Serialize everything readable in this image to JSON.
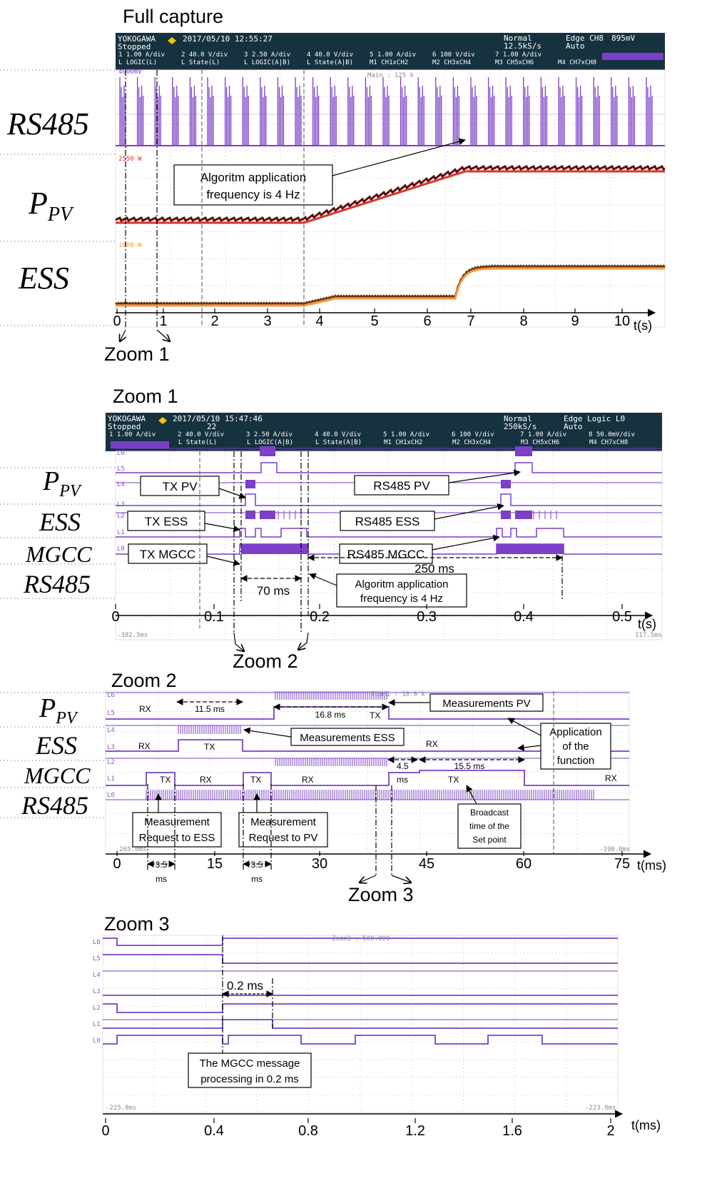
{
  "sections": {
    "full": {
      "title": "Full capture",
      "scope": {
        "brand": "YOKOGAWA",
        "datetime": "2017/05/10 12:55:27",
        "status": "Stopped",
        "mode": "Normal",
        "rate": "12.5kS/s",
        "trigger": "Edge CH8",
        "trigger_level": "895mV",
        "trigger_mode": "Auto",
        "main": "Main : 125 k",
        "scale_top": "4000mV",
        "scale_ppv": "2550 W",
        "scale_ess": "1600 W"
      },
      "channels_row1": [
        "1  1.00 A/div",
        "2  40.0 V/div",
        "3  2.50 A/div",
        "4  40.0 V/div",
        "5  1.00 A/div",
        "6  100 V/div",
        "7  1.00 A/div"
      ],
      "channels_row2": [
        "L  LOGIC(L)",
        "L  State(L)",
        "L  LOGIC(A|B)",
        "L  State(A|B)",
        "M1 CH1xCH2",
        "M2 CH3xCH4",
        "M3 CH5xCH6",
        "M4 CH7xCH8"
      ],
      "signals": [
        "RS485",
        "P",
        "PV",
        "ESS"
      ],
      "annotation": [
        "Algoritm application",
        "frequency is 4 Hz"
      ],
      "ticks": [
        "0",
        "1",
        "2",
        "3",
        "4",
        "5",
        "6",
        "7",
        "8",
        "9",
        "10"
      ],
      "unit": "t(s)",
      "zoom_label": "Zoom 1"
    },
    "zoom1": {
      "title": "Zoom 1",
      "scope": {
        "brand": "YOKOGAWA",
        "datetime": "2017/05/10 15:47:46",
        "count": "22",
        "status": "Stopped",
        "mode": "Normal",
        "rate": "250kS/s",
        "trigger": "Edge Logic L0",
        "trigger_mode": "Auto",
        "start": "-382.5ms",
        "end": "117.5ms"
      },
      "channels_row1": [
        "1  1.00 A/div",
        "2  40.0 V/div",
        "3  2.50 A/div",
        "4  40.0 V/div",
        "5  1.00 A/div",
        "6  100 V/div",
        "7  1.00 A/div",
        "8  50.0mV/div"
      ],
      "channels_row2": [
        "L  State(L)",
        "L  LOGIC(A|B)",
        "L  State(A|B)",
        "M1 CH1xCH2",
        "M2 CH3xCH4",
        "M3 CH5xCH6",
        "M4 CH7xCH8"
      ],
      "signals": [
        "P",
        "PV",
        "ESS",
        "MGCC",
        "RS485"
      ],
      "boxes": [
        "TX PV",
        "TX ESS",
        "TX MGCC",
        "RS485 PV",
        "RS485 ESS",
        "RS485 MGCC"
      ],
      "dims": [
        "70 ms",
        "250 ms"
      ],
      "annotation": [
        "Algoritm application",
        "frequency is 4 Hz"
      ],
      "ticks": [
        "0",
        "0.1",
        "0.2",
        "0.3",
        "0.4",
        "0.5"
      ],
      "unit": "t(s)",
      "zoom_label": "Zoom 2"
    },
    "zoom2": {
      "title": "Zoom 2",
      "scope": {
        "start": "-265.0ms",
        "end": "-190.0ms",
        "zoom": "Zoom1 : 10.0 k"
      },
      "signals": [
        "P",
        "PV",
        "ESS",
        "MGCC",
        "RS485"
      ],
      "states": {
        "rx": "RX",
        "tx": "TX"
      },
      "dims": {
        "d115": "11.5 ms",
        "d168": "16.8 ms",
        "d45": "4.5",
        "d45u": "ms",
        "d155": "15.5 ms",
        "d35": "3.5",
        "d35u": "ms"
      },
      "boxes": {
        "meas_pv": "Measurements PV",
        "meas_ess": "Measurements ESS",
        "app": [
          "Application",
          "of the",
          "function"
        ],
        "req_ess": [
          "Measurement",
          "Request to ESS"
        ],
        "req_pv": [
          "Measurement",
          "Request to PV"
        ],
        "broadcast": [
          "Broadcast",
          "time of the",
          "Set point"
        ]
      },
      "ticks": [
        "0",
        "15",
        "30",
        "45",
        "60",
        "75"
      ],
      "unit": "t(ms)",
      "zoom_label": "Zoom 3"
    },
    "zoom3": {
      "title": "Zoom 3",
      "scope": {
        "start": "-225.8ms",
        "end": "-223.8ms",
        "zoom": "Zoom1 : 500.000"
      },
      "dim": "0.2 ms",
      "box": [
        "The MGCC message",
        "processing in 0.2 ms"
      ],
      "ticks": [
        "0",
        "0.4",
        "0.8",
        "1.2",
        "1.6",
        "2"
      ],
      "unit": "t(ms)"
    }
  },
  "levels": [
    "L6",
    "L5",
    "L4",
    "L3",
    "L2",
    "L1",
    "L0"
  ],
  "colors": {
    "trace_purple": "#7b3fc8",
    "ppv_red": "#d9342b",
    "ess_orange": "#f39a3a",
    "scope_header": "#16323f"
  }
}
